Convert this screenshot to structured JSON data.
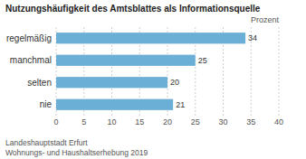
{
  "chart_data": {
    "type": "bar",
    "orientation": "horizontal",
    "title": "Nutzungshäufigkeit des Amtsblattes als Informationsquelle",
    "x_label": "Prozent",
    "annotations": [
      "Landeshauptstadt Erfurt",
      "Wohnungs- und Haushaltserhebung 2019"
    ],
    "categories": [
      "nie",
      "selten",
      "manchmal",
      "regelmäßig"
    ],
    "values": [
      21,
      20,
      25,
      34
    ],
    "color": "#6baed6",
    "xlim": [
      0,
      40
    ],
    "xticks": [
      0,
      5,
      10,
      15,
      20,
      25,
      30,
      35,
      40
    ],
    "grid": true,
    "data_labels": true
  }
}
